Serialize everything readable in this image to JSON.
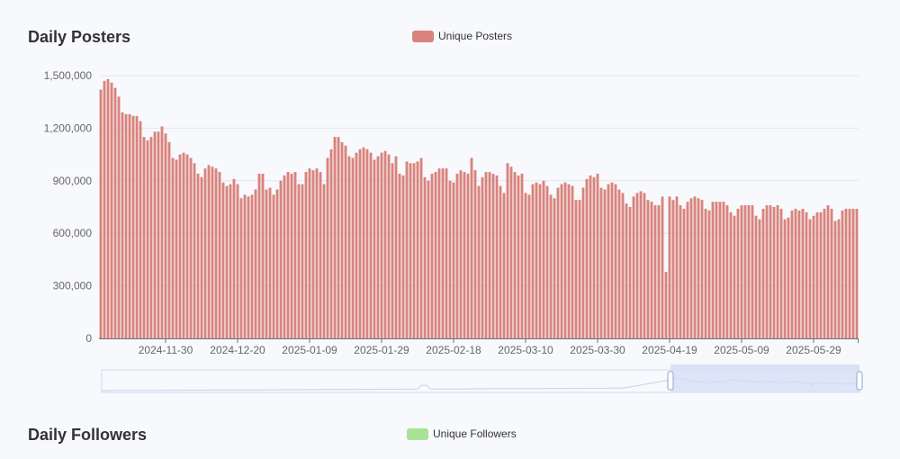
{
  "sections": {
    "posters": {
      "title": "Daily Posters",
      "legend": "Unique Posters",
      "legend_color": "#d9837d"
    },
    "followers": {
      "title": "Daily Followers",
      "legend": "Unique Followers",
      "legend_color": "#a7e297"
    }
  },
  "chart_data": {
    "type": "bar",
    "title": "Daily Posters",
    "series": [
      {
        "name": "Unique Posters",
        "color": "#d9837d",
        "values": [
          1420000,
          1470000,
          1480000,
          1460000,
          1430000,
          1380000,
          1290000,
          1280000,
          1280000,
          1270000,
          1270000,
          1240000,
          1150000,
          1130000,
          1150000,
          1180000,
          1180000,
          1210000,
          1170000,
          1120000,
          1030000,
          1020000,
          1050000,
          1060000,
          1050000,
          1030000,
          1000000,
          940000,
          920000,
          970000,
          990000,
          980000,
          970000,
          950000,
          890000,
          870000,
          880000,
          910000,
          880000,
          800000,
          820000,
          810000,
          820000,
          850000,
          940000,
          940000,
          850000,
          860000,
          820000,
          850000,
          900000,
          930000,
          950000,
          940000,
          950000,
          880000,
          880000,
          950000,
          970000,
          960000,
          970000,
          950000,
          880000,
          1030000,
          1080000,
          1150000,
          1150000,
          1120000,
          1100000,
          1040000,
          1030000,
          1060000,
          1080000,
          1090000,
          1080000,
          1060000,
          1020000,
          1040000,
          1060000,
          1070000,
          1050000,
          1000000,
          1040000,
          940000,
          930000,
          1010000,
          1000000,
          1000000,
          1010000,
          1030000,
          920000,
          900000,
          940000,
          950000,
          970000,
          970000,
          970000,
          900000,
          890000,
          940000,
          960000,
          950000,
          940000,
          1030000,
          960000,
          870000,
          920000,
          950000,
          950000,
          940000,
          930000,
          870000,
          830000,
          1000000,
          980000,
          950000,
          930000,
          940000,
          830000,
          820000,
          880000,
          890000,
          880000,
          900000,
          870000,
          820000,
          800000,
          860000,
          880000,
          890000,
          880000,
          870000,
          790000,
          790000,
          860000,
          910000,
          930000,
          920000,
          940000,
          860000,
          850000,
          880000,
          890000,
          880000,
          850000,
          830000,
          770000,
          750000,
          810000,
          830000,
          840000,
          830000,
          790000,
          780000,
          760000,
          760000,
          810000,
          380000,
          810000,
          790000,
          810000,
          760000,
          740000,
          780000,
          800000,
          810000,
          800000,
          790000,
          740000,
          730000,
          780000,
          780000,
          780000,
          780000,
          760000,
          720000,
          700000,
          740000,
          760000,
          760000,
          760000,
          760000,
          700000,
          680000,
          740000,
          760000,
          760000,
          750000,
          760000,
          740000,
          680000,
          690000,
          730000,
          740000,
          730000,
          740000,
          720000,
          680000,
          700000,
          720000,
          720000,
          740000,
          760000,
          740000,
          670000,
          680000,
          730000,
          740000,
          740000,
          740000,
          740000
        ]
      }
    ],
    "x_tick_labels": [
      "2024-11-30",
      "2024-12-20",
      "2025-01-09",
      "2025-01-29",
      "2025-02-18",
      "2025-03-10",
      "2025-03-30",
      "2025-04-19",
      "2025-05-09",
      "2025-05-29"
    ],
    "y_tick_labels": [
      "0",
      "300,000",
      "600,000",
      "900,000",
      "1,200,000",
      "1,500,000"
    ],
    "y_ticks": [
      0,
      300000,
      600000,
      900000,
      1200000,
      1500000
    ],
    "ylim": [
      0,
      1500000
    ],
    "xlabel": "",
    "ylabel": ""
  }
}
